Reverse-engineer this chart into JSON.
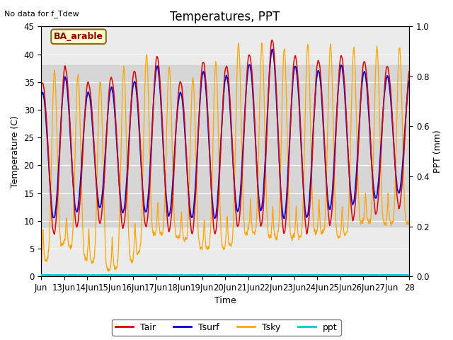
{
  "title": "Temperatures, PPT",
  "xlabel": "Time",
  "ylabel_left": "Temperature (C)",
  "ylabel_right": "PPT (mm)",
  "no_data_text": "No data for f_Tdew",
  "label_box_text": "BA_arable",
  "ylim_left": [
    0,
    45
  ],
  "ylim_right": [
    0.0,
    1.0
  ],
  "yticks_left": [
    0,
    5,
    10,
    15,
    20,
    25,
    30,
    35,
    40,
    45
  ],
  "yticks_right": [
    0.0,
    0.2,
    0.4,
    0.6,
    0.8,
    1.0
  ],
  "gray_band_low": 9,
  "gray_band_high": 38,
  "n_days": 16,
  "tair_color": "#dd0000",
  "tsurf_color": "#0000dd",
  "tsky_color": "#ffa500",
  "ppt_color": "#00cccc",
  "background_color": "#ebebeb",
  "legend_labels": [
    "Tair",
    "Tsurf",
    "Tsky",
    "ppt"
  ],
  "xtick_labels": [
    "Jun",
    "13Jun",
    "14Jun",
    "15Jun",
    "16Jun",
    "17Jun",
    "18Jun",
    "19Jun",
    "20Jun",
    "21Jun",
    "22Jun",
    "23Jun",
    "24Jun",
    "25Jun",
    "26Jun",
    "27Jun",
    "28"
  ],
  "title_fontsize": 12,
  "axis_label_fontsize": 9,
  "tick_fontsize": 8.5
}
